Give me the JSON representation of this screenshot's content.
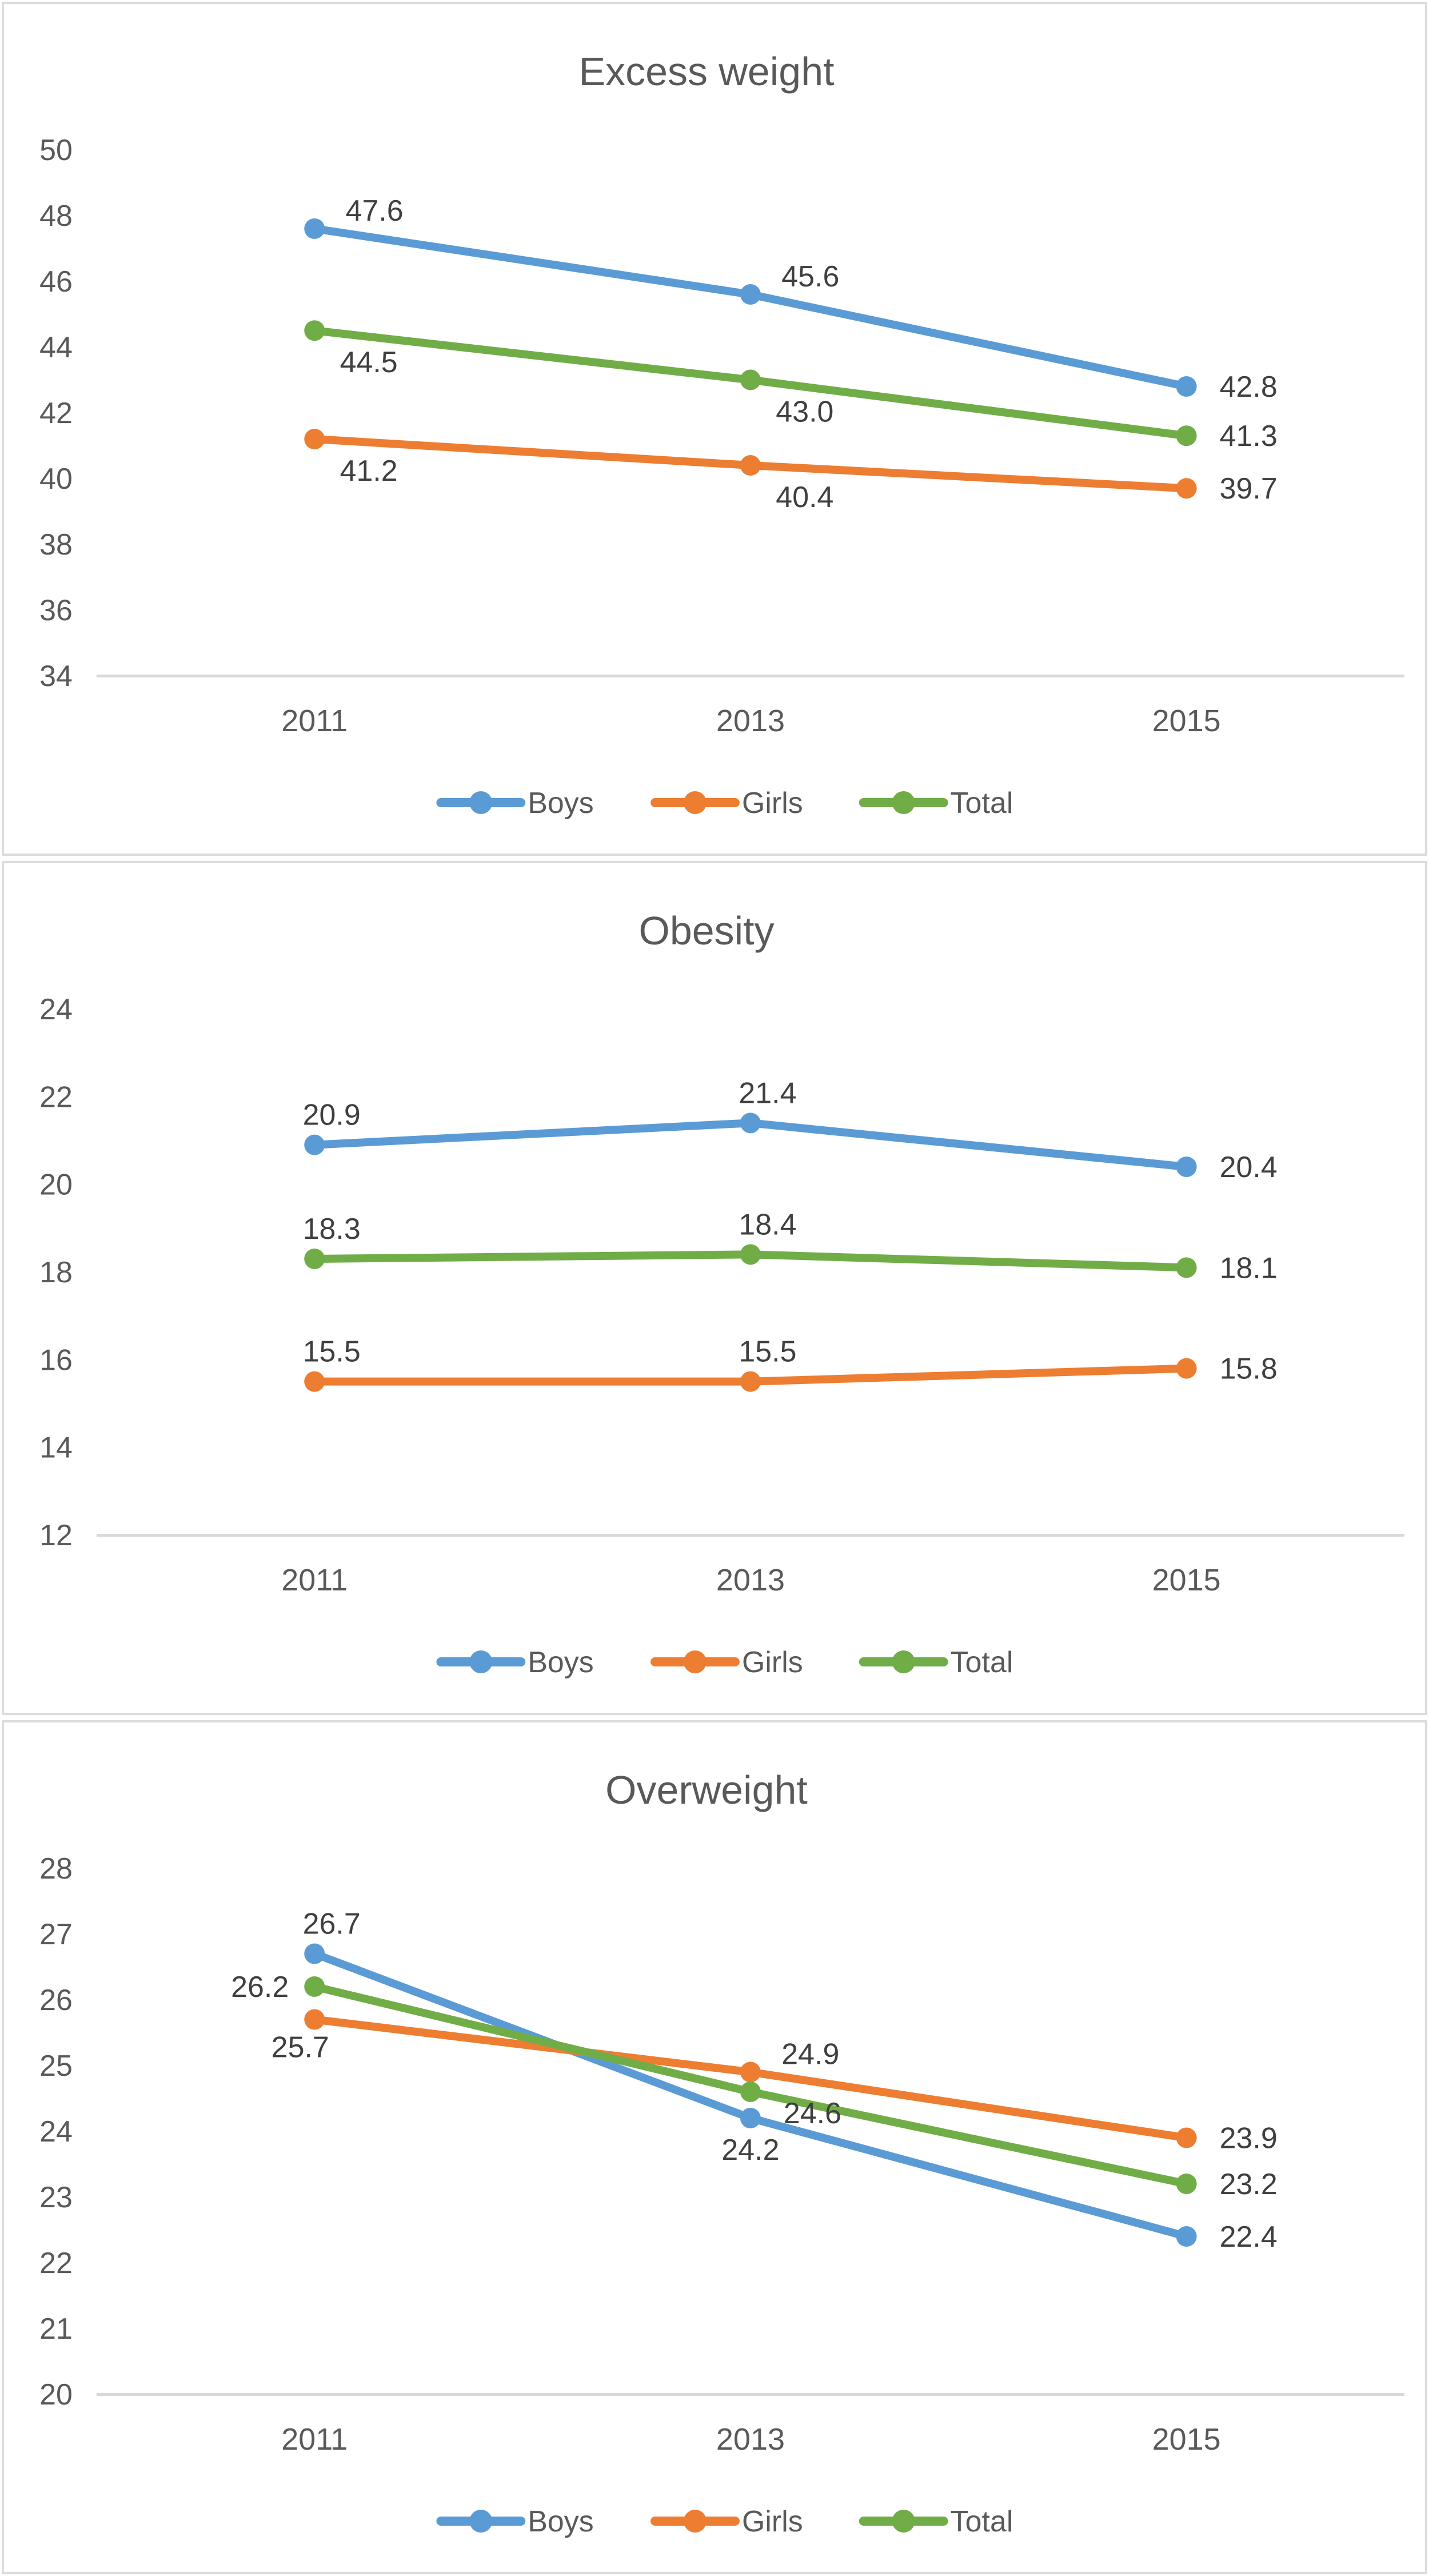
{
  "colors": {
    "boys": "#5B9BD5",
    "girls": "#ED7D31",
    "total": "#70AD47",
    "title_text": "#595959",
    "axis_text": "#595959",
    "label_text": "#3F3F3F",
    "axis_line": "#D9D9D9",
    "panel_border": "#DCDCDC"
  },
  "chart_data": [
    {
      "type": "line",
      "title": "Excess weight",
      "categories": [
        "2011",
        "2013",
        "2015"
      ],
      "xlabel": "",
      "ylabel": "",
      "ylim": [
        34,
        50
      ],
      "ytick_step": 2,
      "ytick_labels": [
        "50",
        "48",
        "46",
        "44",
        "42",
        "40",
        "38",
        "36",
        "34"
      ],
      "grid": false,
      "legend_position": "bottom",
      "series": [
        {
          "name": "Boys",
          "color": "#5B9BD5",
          "values": [
            47.6,
            45.6,
            42.8
          ],
          "labels": [
            "47.6",
            "45.6",
            "42.8"
          ],
          "label_pos": [
            "ar",
            "ar",
            "r"
          ]
        },
        {
          "name": "Girls",
          "color": "#ED7D31",
          "values": [
            41.2,
            40.4,
            39.7
          ],
          "labels": [
            "41.2",
            "40.4",
            "39.7"
          ],
          "label_pos": [
            "br",
            "br",
            "r"
          ]
        },
        {
          "name": "Total",
          "color": "#70AD47",
          "values": [
            44.5,
            43.0,
            41.3
          ],
          "labels": [
            "44.5",
            "43.0",
            "41.3"
          ],
          "label_pos": [
            "br",
            "br",
            "r"
          ]
        }
      ]
    },
    {
      "type": "line",
      "title": "Obesity",
      "categories": [
        "2011",
        "2013",
        "2015"
      ],
      "xlabel": "",
      "ylabel": "",
      "ylim": [
        12,
        24
      ],
      "ytick_step": 2,
      "ytick_labels": [
        "24",
        "22",
        "20",
        "18",
        "16",
        "14",
        "12"
      ],
      "grid": false,
      "legend_position": "bottom",
      "series": [
        {
          "name": "Boys",
          "color": "#5B9BD5",
          "values": [
            20.9,
            21.4,
            20.4
          ],
          "labels": [
            "20.9",
            "21.4",
            "20.4"
          ],
          "label_pos": [
            "a",
            "a",
            "r"
          ]
        },
        {
          "name": "Girls",
          "color": "#ED7D31",
          "values": [
            15.5,
            15.5,
            15.8
          ],
          "labels": [
            "15.5",
            "15.5",
            "15.8"
          ],
          "label_pos": [
            "a",
            "a",
            "r"
          ]
        },
        {
          "name": "Total",
          "color": "#70AD47",
          "values": [
            18.3,
            18.4,
            18.1
          ],
          "labels": [
            "18.3",
            "18.4",
            "18.1"
          ],
          "label_pos": [
            "a",
            "a",
            "r"
          ]
        }
      ]
    },
    {
      "type": "line",
      "title": "Overweight",
      "categories": [
        "2011",
        "2013",
        "2015"
      ],
      "xlabel": "",
      "ylabel": "",
      "ylim": [
        20,
        28
      ],
      "ytick_step": 1,
      "ytick_labels": [
        "28",
        "27",
        "26",
        "25",
        "24",
        "23",
        "22",
        "21",
        "20"
      ],
      "grid": false,
      "legend_position": "bottom",
      "series": [
        {
          "name": "Boys",
          "color": "#5B9BD5",
          "values": [
            26.7,
            24.2,
            22.4
          ],
          "labels": [
            "26.7",
            "24.2",
            "22.4"
          ],
          "label_pos": [
            "a",
            "b",
            "r"
          ]
        },
        {
          "name": "Girls",
          "color": "#ED7D31",
          "values": [
            25.7,
            24.9,
            23.9
          ],
          "labels": [
            "25.7",
            "24.9",
            "23.9"
          ],
          "label_pos": [
            "bl",
            "ar",
            "r"
          ]
        },
        {
          "name": "Total",
          "color": "#70AD47",
          "values": [
            26.2,
            24.6,
            23.2
          ],
          "labels": [
            "26.2",
            "24.6",
            "23.2"
          ],
          "label_pos": [
            "l",
            "rb",
            "r"
          ]
        }
      ]
    }
  ]
}
